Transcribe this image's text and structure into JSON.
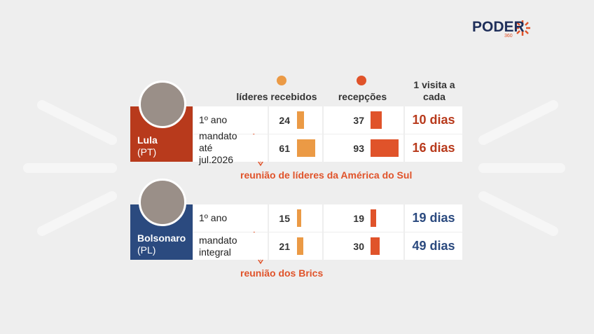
{
  "brand": {
    "name": "PODER",
    "sub": "360"
  },
  "columns": {
    "leaders": "líderes recebidos",
    "receptions": "recepções",
    "visit": "1 visita a cada"
  },
  "colors": {
    "leaders": "#eb9a45",
    "receptions": "#e0532a"
  },
  "groups": [
    {
      "name": "Lula",
      "party": "(PT)",
      "color": "#b83a1c",
      "rows": [
        {
          "period": "1º ano",
          "leaders": 24,
          "receptions": 37,
          "visit": "10 dias"
        },
        {
          "period": "mandato até jul.2026",
          "leaders": 61,
          "receptions": 93,
          "visit": "16 dias"
        }
      ],
      "note": "reunião de líderes da América do Sul"
    },
    {
      "name": "Bolsonaro",
      "party": "(PL)",
      "color": "#2b4a7f",
      "rows": [
        {
          "period": "1º ano",
          "leaders": 15,
          "receptions": 19,
          "visit": "19 dias"
        },
        {
          "period": "mandato integral",
          "leaders": 21,
          "receptions": 30,
          "visit": "49 dias"
        }
      ],
      "note": "reunião dos Brics"
    }
  ]
}
